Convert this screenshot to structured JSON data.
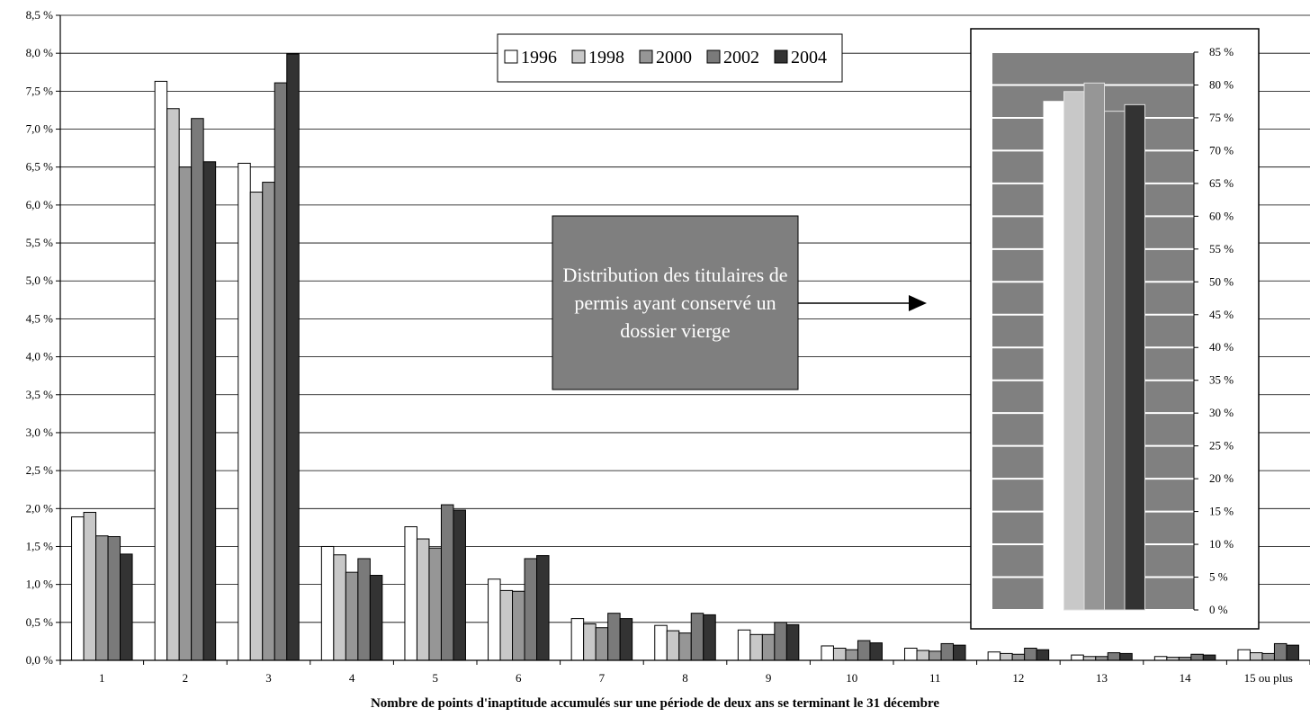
{
  "chart_data": [
    {
      "type": "bar",
      "categories": [
        "1",
        "2",
        "3",
        "4",
        "5",
        "6",
        "7",
        "8",
        "9",
        "10",
        "11",
        "12",
        "13",
        "14",
        "15 ou plus"
      ],
      "series": [
        {
          "name": "1996",
          "color": "#ffffff",
          "values": [
            1.89,
            7.63,
            6.55,
            1.5,
            1.76,
            1.07,
            0.55,
            0.46,
            0.4,
            0.19,
            0.16,
            0.11,
            0.07,
            0.05,
            0.14
          ]
        },
        {
          "name": "1998",
          "color": "#c8c8c8",
          "values": [
            1.95,
            7.27,
            6.17,
            1.39,
            1.6,
            0.92,
            0.48,
            0.39,
            0.34,
            0.16,
            0.13,
            0.09,
            0.05,
            0.04,
            0.1
          ]
        },
        {
          "name": "2000",
          "color": "#969696",
          "values": [
            1.64,
            6.5,
            6.3,
            1.16,
            1.48,
            0.91,
            0.43,
            0.36,
            0.34,
            0.14,
            0.12,
            0.08,
            0.05,
            0.04,
            0.09
          ]
        },
        {
          "name": "2002",
          "color": "#7a7a7a",
          "values": [
            1.63,
            7.14,
            7.61,
            1.34,
            2.05,
            1.34,
            0.62,
            0.62,
            0.5,
            0.26,
            0.22,
            0.16,
            0.1,
            0.08,
            0.22
          ]
        },
        {
          "name": "2004",
          "color": "#333333",
          "values": [
            1.4,
            6.57,
            7.99,
            1.12,
            1.98,
            1.38,
            0.55,
            0.6,
            0.47,
            0.23,
            0.2,
            0.14,
            0.09,
            0.07,
            0.2
          ]
        }
      ],
      "ylim": [
        0,
        8.5
      ],
      "ytick_step": 0.5,
      "ytick_labels": [
        "0,0 %",
        "0,5 %",
        "1,0 %",
        "1,5 %",
        "2,0 %",
        "2,5 %",
        "3,0 %",
        "3,5 %",
        "4,0 %",
        "4,5 %",
        "5,0 %",
        "5,5 %",
        "6,0 %",
        "6,5 %",
        "7,0 %",
        "7,5 %",
        "8,0 %",
        "8,5 %"
      ],
      "xlabel": "Nombre de points d'inaptitude accumulés sur une période de deux ans se terminant le 31 décembre",
      "grid": true,
      "legend_placement": "top-center"
    },
    {
      "type": "bar",
      "categories": [
        ""
      ],
      "series": [
        {
          "name": "1996",
          "color": "#ffffff",
          "values": [
            77.5
          ]
        },
        {
          "name": "1998",
          "color": "#c8c8c8",
          "values": [
            79
          ]
        },
        {
          "name": "2000",
          "color": "#969696",
          "values": [
            80.3
          ]
        },
        {
          "name": "2002",
          "color": "#7a7a7a",
          "values": [
            76
          ]
        },
        {
          "name": "2004",
          "color": "#333333",
          "values": [
            77
          ]
        }
      ],
      "ylim": [
        0,
        85
      ],
      "ytick_labels": [
        "0 %",
        "5 %",
        "10 %",
        "15 %",
        "20 %",
        "25 %",
        "30 %",
        "35 %",
        "40 %",
        "45 %",
        "50 %",
        "55 %",
        "60 %",
        "65 %",
        "70 %",
        "75 %",
        "80 %",
        "85 %"
      ],
      "grid": true,
      "plot_background": "#808080"
    }
  ],
  "annotation": {
    "text": "Distribution des titulaires de permis ayant conservé un dossier vierge",
    "background": "#7f7f7f"
  }
}
